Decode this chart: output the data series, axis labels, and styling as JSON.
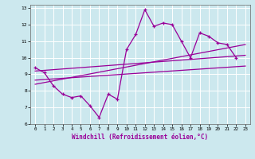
{
  "xlabel": "Windchill (Refroidissement éolien,°C)",
  "bg_color": "#cce8ee",
  "line_color": "#990099",
  "grid_color": "#ffffff",
  "xlim": [
    -0.5,
    23.5
  ],
  "ylim": [
    6,
    13.2
  ],
  "yticks": [
    6,
    7,
    8,
    9,
    10,
    11,
    12,
    13
  ],
  "xticks": [
    0,
    1,
    2,
    3,
    4,
    5,
    6,
    7,
    8,
    9,
    10,
    11,
    12,
    13,
    14,
    15,
    16,
    17,
    18,
    19,
    20,
    21,
    22,
    23
  ],
  "main_x": [
    0,
    1,
    2,
    3,
    4,
    5,
    6,
    7,
    8,
    9,
    10,
    11,
    12,
    13,
    14,
    15,
    16,
    17,
    18,
    19,
    20,
    21,
    22
  ],
  "main_y": [
    9.4,
    9.1,
    8.3,
    7.8,
    7.6,
    7.7,
    7.1,
    6.4,
    7.8,
    7.5,
    10.5,
    11.4,
    12.9,
    11.9,
    12.1,
    12.0,
    11.0,
    10.0,
    11.5,
    11.3,
    10.9,
    10.8,
    10.0
  ],
  "trend1_x": [
    0,
    23
  ],
  "trend1_y": [
    9.2,
    10.15
  ],
  "trend2_x": [
    0,
    23
  ],
  "trend2_y": [
    8.4,
    10.8
  ],
  "trend3_x": [
    0,
    23
  ],
  "trend3_y": [
    8.65,
    9.5
  ]
}
